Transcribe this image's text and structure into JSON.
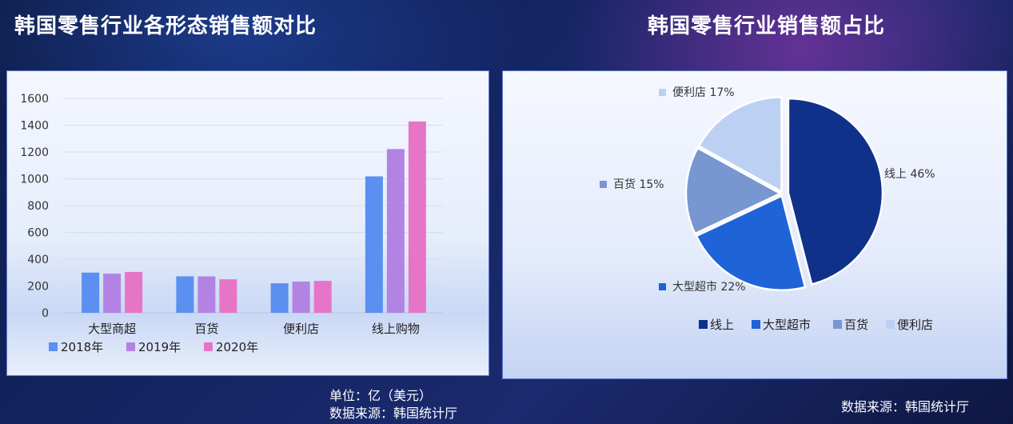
{
  "left_title": "韩国零售行业各形态销售额对比",
  "right_title": "韩国零售行业销售额占比",
  "left_footnote": {
    "unit": "单位：亿（美元）",
    "source": "数据来源：韩国统计厅"
  },
  "right_footnote": {
    "source": "数据来源：韩国统计厅"
  },
  "chart_data": [
    {
      "type": "bar",
      "categories": [
        "大型商超",
        "百货",
        "便利店",
        "线上购物"
      ],
      "series": [
        {
          "name": "2018年",
          "values": [
            300,
            272,
            220,
            1018
          ],
          "color": "#5b8ff0"
        },
        {
          "name": "2019年",
          "values": [
            292,
            272,
            233,
            1222
          ],
          "color": "#b383e3"
        },
        {
          "name": "2020年",
          "values": [
            305,
            250,
            238,
            1428
          ],
          "color": "#e675c8"
        }
      ],
      "ylim": [
        0,
        1600
      ],
      "yticks": [
        0,
        200,
        400,
        600,
        800,
        1000,
        1200,
        1400,
        1600
      ],
      "grid": true,
      "legend": "bottom-left"
    },
    {
      "type": "pie",
      "labels": [
        "线上",
        "大型超市",
        "百货",
        "便利店"
      ],
      "values": [
        46,
        22,
        15,
        17
      ],
      "data_labels": [
        "线上 46%",
        "大型超市 22%",
        "百货 15%",
        "便利店 17%"
      ],
      "colors": [
        "#10318a",
        "#1f63d8",
        "#7896d0",
        "#bcd0f3"
      ],
      "legend": "bottom"
    }
  ]
}
